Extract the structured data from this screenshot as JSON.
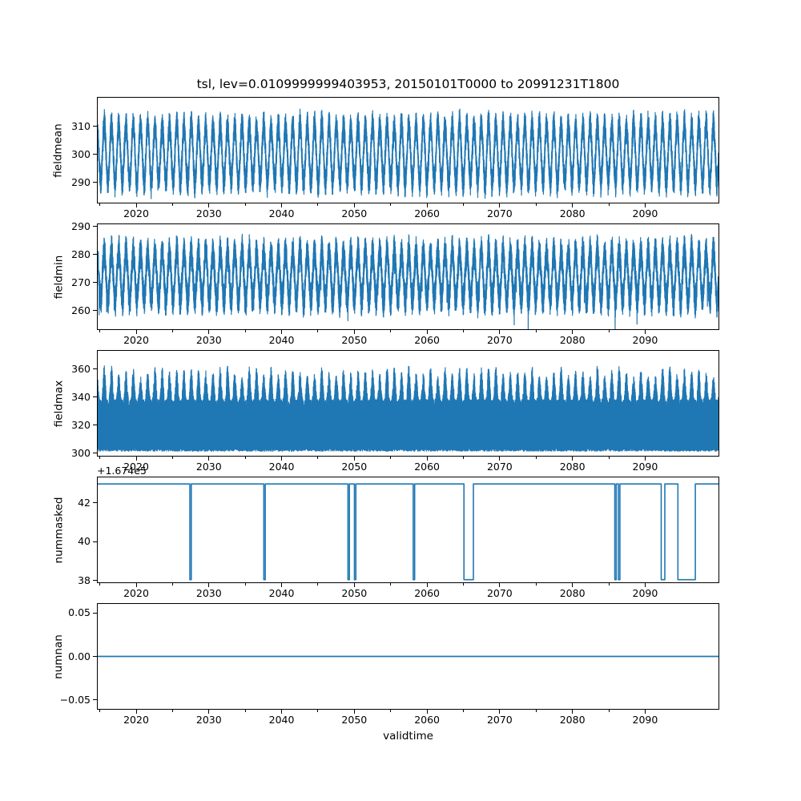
{
  "figure": {
    "title": "tsl, lev=0.0109999999403953, 20150101T0000 to 20991231T1800",
    "xlabel": "validtime",
    "background": "#ffffff",
    "line_color": "#1f77b4",
    "text_color": "#000000"
  },
  "chart_data": [
    {
      "type": "line",
      "ylabel": "fieldmean",
      "x_range": [
        2014.6,
        2100.2
      ],
      "ylim": [
        282.5,
        320.5
      ],
      "yticks": {
        "values": [
          290,
          300,
          310
        ],
        "labels": [
          "290",
          "300",
          "310"
        ]
      },
      "series": {
        "name": "fieldmean",
        "kind": "seasonal-band",
        "base": 300.2,
        "seasonal_amplitude": 10.3,
        "yearly_peak_variation": 0.16,
        "noise_min": 2.2,
        "noise_max": 5.4,
        "annual_peaks_approx": [
          310,
          318
        ],
        "annual_troughs_approx": [
          284,
          290
        ]
      }
    },
    {
      "type": "line",
      "ylabel": "fieldmin",
      "x_range": [
        2014.6,
        2100.2
      ],
      "ylim": [
        253.0,
        291.0
      ],
      "yticks": {
        "values": [
          260,
          270,
          280,
          290
        ],
        "labels": [
          "260",
          "270",
          "280",
          "290"
        ]
      },
      "series": {
        "name": "fieldmin",
        "kind": "seasonal-band",
        "base": 272.2,
        "seasonal_amplitude": 8.8,
        "yearly_peak_variation": 0.15,
        "noise_min": 2.4,
        "noise_max": 6.0,
        "down_spike": 7,
        "down_spike_prob": 0.012,
        "annual_peaks_approx": [
          285,
          289
        ],
        "annual_troughs_approx": [
          254,
          262
        ]
      }
    },
    {
      "type": "line",
      "ylabel": "fieldmax",
      "x_range": [
        2014.6,
        2100.2
      ],
      "ylim": [
        297.5,
        373.5
      ],
      "yticks": {
        "values": [
          300,
          320,
          340,
          360
        ],
        "labels": [
          "300",
          "320",
          "340",
          "360"
        ]
      },
      "series": {
        "name": "fieldmax",
        "kind": "max-fill",
        "floor_base": 300.8,
        "floor_jitter": 2.2,
        "top_base": 338,
        "top_amplitude": 21,
        "top_power": 2.0,
        "yearly_peak_variation": 0.4,
        "top_ragged": 9,
        "annual_peaks_approx": [
          350,
          367
        ],
        "floor_approx": [
          300,
          303
        ]
      }
    },
    {
      "type": "line",
      "ylabel": "nummasked",
      "offset_text": "+1.674e5",
      "x_range": [
        2014.6,
        2100.2
      ],
      "ylim": [
        37.86,
        43.34
      ],
      "yticks": {
        "values": [
          38,
          40,
          42
        ],
        "labels": [
          "38",
          "40",
          "42"
        ]
      },
      "series": {
        "name": "nummasked",
        "kind": "step",
        "high_level": 43,
        "low_level": 38,
        "low_segments": [
          [
            2027.3,
            2027.5
          ],
          [
            2037.5,
            2037.7
          ],
          [
            2049.1,
            2049.3
          ],
          [
            2050.0,
            2050.2
          ],
          [
            2058.1,
            2058.3
          ],
          [
            2065.1,
            2066.4
          ],
          [
            2085.9,
            2086.1
          ],
          [
            2086.4,
            2086.6
          ],
          [
            2092.3,
            2092.8
          ],
          [
            2094.6,
            2097.0
          ]
        ]
      }
    },
    {
      "type": "line",
      "ylabel": "numnan",
      "x_range": [
        2014.6,
        2100.2
      ],
      "ylim": [
        -0.0611,
        0.0611
      ],
      "yticks": {
        "values": [
          -0.05,
          0.0,
          0.05
        ],
        "labels": [
          "−0.05",
          "0.00",
          "0.05"
        ]
      },
      "series": {
        "name": "numnan",
        "kind": "constant",
        "value": 0.0
      }
    }
  ],
  "x_axis": {
    "major_tick_years": [
      2020,
      2030,
      2040,
      2050,
      2060,
      2070,
      2080,
      2090
    ],
    "major_tick_labels": [
      "2020",
      "2030",
      "2040",
      "2050",
      "2060",
      "2070",
      "2080",
      "2090"
    ],
    "minor_tick_years": [
      2015,
      2025,
      2035,
      2045,
      2055,
      2065,
      2075,
      2085,
      2095
    ],
    "labels_shown_under_every_subplot": true
  }
}
